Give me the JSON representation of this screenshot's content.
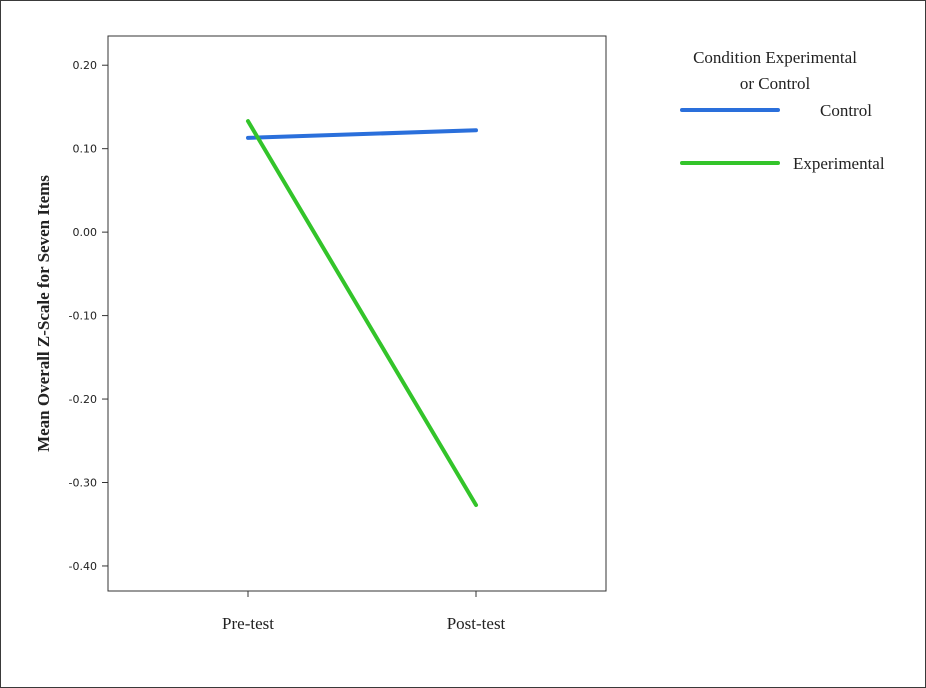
{
  "chart_data": {
    "type": "line",
    "ylabel": "Mean Overall Z-Scale for Seven Items",
    "xlabel": "",
    "categories": [
      "Pre-test",
      "Post-test"
    ],
    "ylim": [
      -0.43,
      0.235
    ],
    "yticks": [
      0.2,
      0.1,
      0.0,
      -0.1,
      -0.2,
      -0.3,
      -0.4
    ],
    "ytick_labels": [
      "0.20",
      "0.10",
      "0.00",
      "-0.10",
      "-0.20",
      "-0.30",
      "-0.40"
    ],
    "legend": {
      "title": [
        "Condition Experimental",
        "or Control"
      ],
      "placement": "right"
    },
    "series": [
      {
        "name": "Control",
        "values": [
          0.113,
          0.122
        ],
        "color": "#2a6fdb"
      },
      {
        "name": "Experimental",
        "values": [
          0.133,
          -0.327
        ],
        "color": "#33c42a"
      }
    ]
  }
}
